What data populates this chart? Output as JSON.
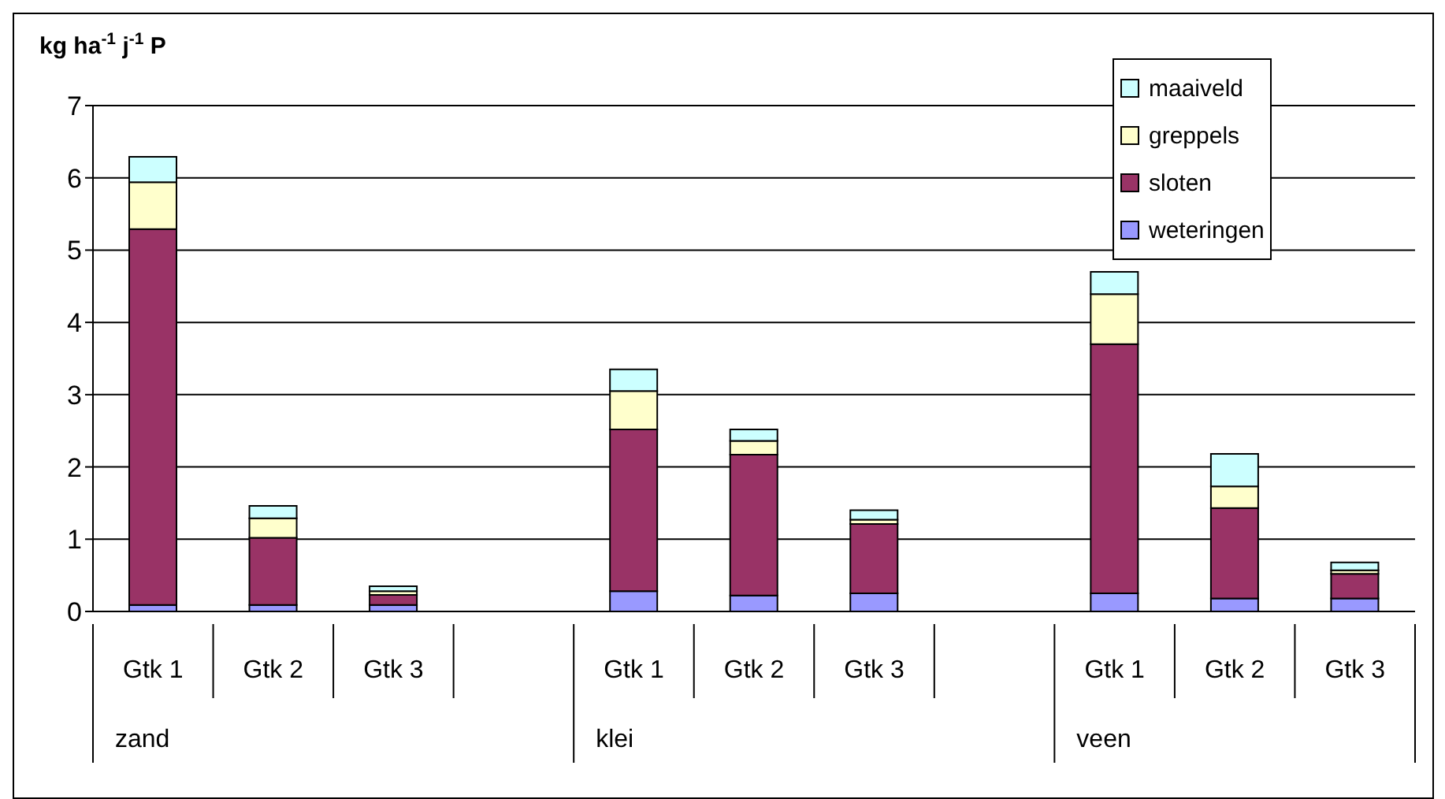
{
  "chart_data": {
    "type": "bar",
    "stacked": true,
    "ylabel": "kg ha$^{-1}$ j$^{-1}$ P",
    "categories": [
      "Gtk 1",
      "Gtk 2",
      "Gtk 3",
      null,
      "Gtk 1",
      "Gtk 2",
      "Gtk 3",
      null,
      "Gtk 1",
      "Gtk 2",
      "Gtk 3"
    ],
    "series": [
      {
        "name": "weteringen",
        "color": "#9999ff",
        "values": [
          0.09,
          0.09,
          0.09,
          null,
          0.28,
          0.22,
          0.25,
          null,
          0.25,
          0.18,
          0.18
        ]
      },
      {
        "name": "sloten",
        "color": "#993366",
        "values": [
          5.2,
          0.93,
          0.14,
          null,
          2.24,
          1.95,
          0.96,
          null,
          3.45,
          1.25,
          0.34
        ]
      },
      {
        "name": "greppels",
        "color": "#ffffcc",
        "values": [
          0.65,
          0.27,
          0.05,
          null,
          0.53,
          0.19,
          0.06,
          null,
          0.69,
          0.3,
          0.05
        ]
      },
      {
        "name": "maaiveld",
        "color": "#ccffff",
        "values": [
          0.35,
          0.17,
          0.07,
          null,
          0.3,
          0.16,
          0.13,
          null,
          0.31,
          0.45,
          0.11
        ]
      }
    ],
    "annotations": [
      "zand",
      "klei",
      "veen"
    ],
    "ylim": [
      0,
      7
    ],
    "yticks": [
      0,
      1,
      2,
      3,
      4,
      5,
      6,
      7
    ],
    "grid": "y",
    "legend": "top right"
  }
}
